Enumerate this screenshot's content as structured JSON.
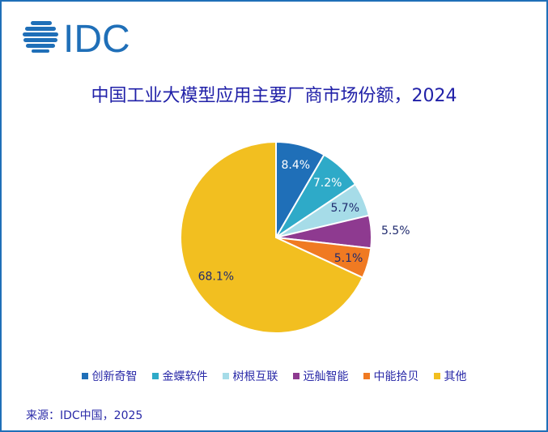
{
  "logo": "IDC",
  "chart_data": {
    "type": "pie",
    "title": "中国工业大模型应用主要厂商市场份额，2024",
    "categories": [
      "创新奇智",
      "金蝶软件",
      "树根互联",
      "远舢智能",
      "中能拾贝",
      "其他"
    ],
    "values": [
      8.4,
      7.2,
      5.7,
      5.5,
      5.1,
      68.1
    ],
    "labels": [
      "8.4%",
      "7.2%",
      "5.7%",
      "5.5%",
      "5.1%",
      "68.1%"
    ],
    "colors": [
      "#1f6fb8",
      "#2eaac8",
      "#a6dce8",
      "#8e3a90",
      "#f07a22",
      "#f2bf20"
    ],
    "legend": "bottom"
  },
  "source": "来源：IDC中国，2025"
}
